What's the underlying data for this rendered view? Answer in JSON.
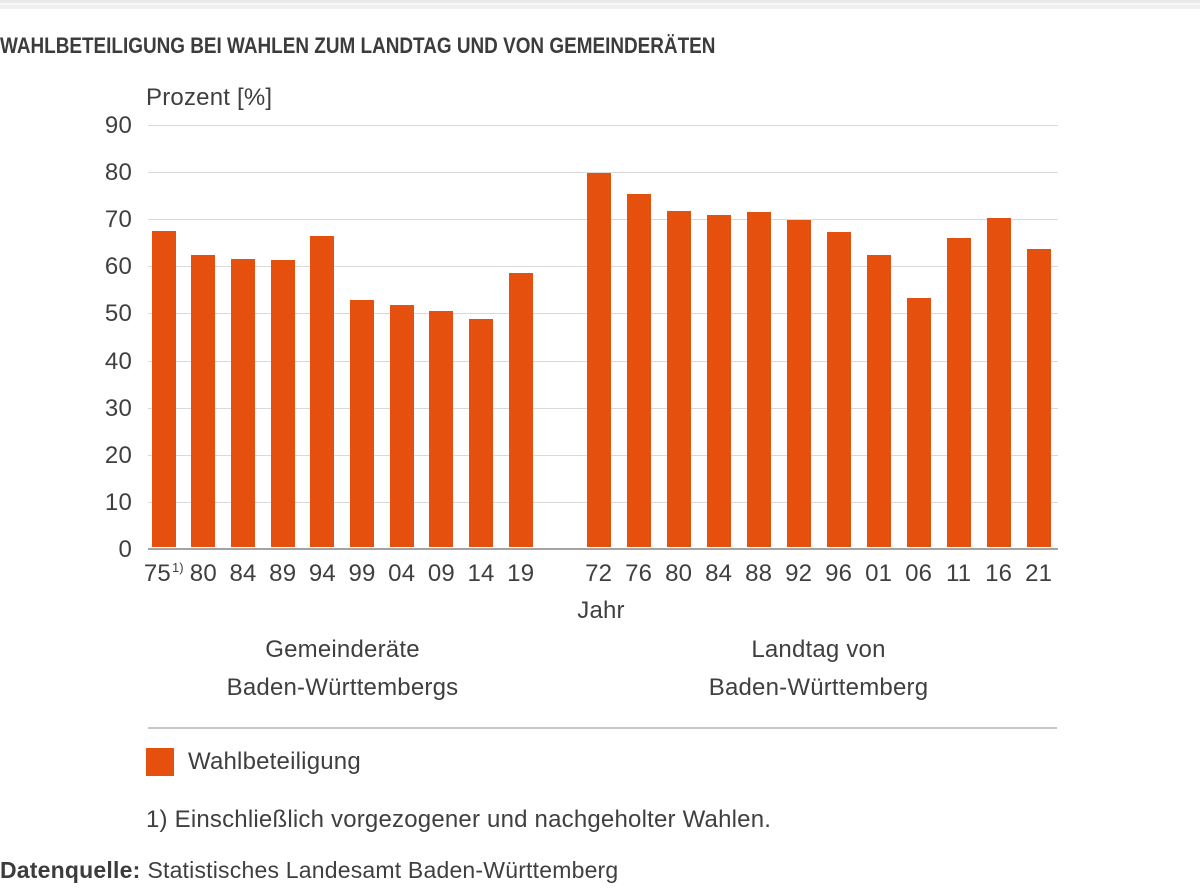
{
  "chart_data": {
    "type": "bar",
    "title": "WAHLBETEILIGUNG BEI WAHLEN ZUM LANDTAG UND VON GEMEINDERÄTEN",
    "ylabel": "Prozent [%]",
    "xlabel": "Jahr",
    "ylim": [
      0,
      90
    ],
    "y_ticks": [
      0,
      10,
      20,
      30,
      40,
      50,
      60,
      70,
      80,
      90
    ],
    "grid": true,
    "bar_color": "#e5500f",
    "legend": {
      "label": "Wahlbeteiligung",
      "position": "bottom-left"
    },
    "groups": [
      {
        "label_lines": [
          "Gemeinderäte",
          "Baden-Württembergs"
        ],
        "categories": [
          "75",
          "80",
          "84",
          "89",
          "94",
          "99",
          "04",
          "09",
          "14",
          "19"
        ],
        "category_sups": {
          "0": "1)"
        },
        "values": [
          67.8,
          62.6,
          61.8,
          61.6,
          66.7,
          53.0,
          52.1,
          50.7,
          49.1,
          58.8
        ]
      },
      {
        "label_lines": [
          "Landtag von",
          "Baden-Württemberg"
        ],
        "categories": [
          "72",
          "76",
          "80",
          "84",
          "88",
          "92",
          "96",
          "01",
          "06",
          "11",
          "16",
          "21"
        ],
        "values": [
          80.0,
          75.5,
          72.0,
          71.2,
          71.8,
          70.1,
          67.6,
          62.6,
          53.4,
          66.3,
          70.4,
          63.8
        ]
      }
    ],
    "footnote": "1) Einschließlich vorgezogener und nachgeholter Wahlen.",
    "source": {
      "label": "Datenquelle:",
      "text": "Statistisches Landesamt Baden-Württemberg"
    }
  }
}
